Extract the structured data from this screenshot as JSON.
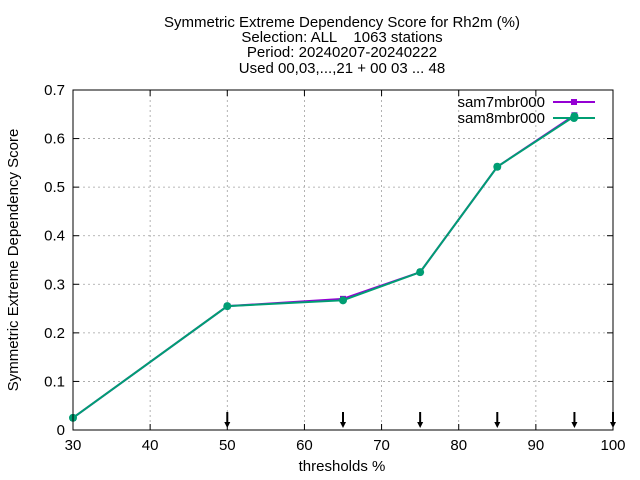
{
  "chart_data": {
    "type": "line",
    "title_lines": [
      "Symmetric Extreme Dependency Score  for Rh2m (%)",
      "Selection: ALL    1063 stations",
      "Period: 20240207-20240222",
      "Used 00,03,...,21 + 00 03 ... 48"
    ],
    "xlabel": "thresholds %",
    "ylabel": "Symmetric Extreme Dependency Score",
    "xlim": [
      30,
      100
    ],
    "ylim": [
      0,
      0.7
    ],
    "x_ticks": [
      30,
      40,
      50,
      60,
      70,
      80,
      90,
      100
    ],
    "y_ticks": [
      0,
      0.1,
      0.2,
      0.3,
      0.4,
      0.5,
      0.6,
      0.7
    ],
    "x_tick_labels": [
      "30",
      "40",
      "50",
      "60",
      "70",
      "80",
      "90",
      "100"
    ],
    "y_tick_labels": [
      "0",
      "0.1",
      "0.2",
      "0.3",
      "0.4",
      "0.5",
      "0.6",
      "0.7"
    ],
    "grid": true,
    "legend_position": "top-right",
    "threshold_markers_x": [
      50,
      65,
      75,
      85,
      95,
      100
    ],
    "series": [
      {
        "name": "sam7mbr000",
        "color": "#9400d3",
        "x": [
          30,
          50,
          65,
          75,
          85,
          95
        ],
        "y": [
          0.025,
          0.255,
          0.27,
          0.325,
          0.542,
          0.648
        ]
      },
      {
        "name": "sam8mbr000",
        "color": "#009e73",
        "x": [
          30,
          50,
          65,
          75,
          85,
          95
        ],
        "y": [
          0.025,
          0.255,
          0.267,
          0.325,
          0.542,
          0.646
        ]
      }
    ]
  }
}
